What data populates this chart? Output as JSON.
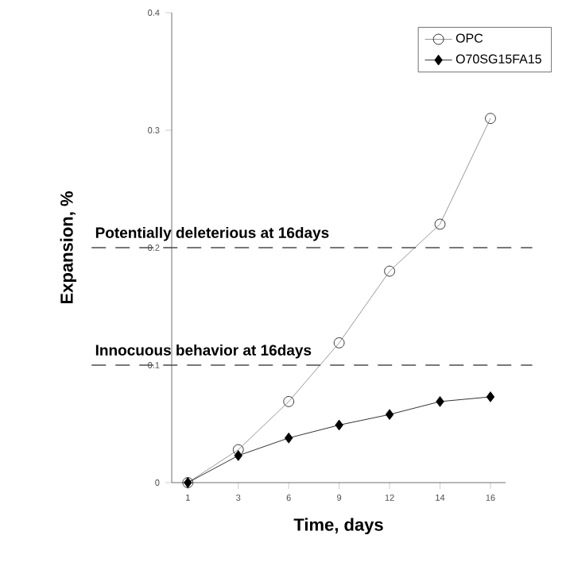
{
  "chart_data": {
    "type": "line",
    "xlabel": "Time, days",
    "ylabel": "Expansion, %",
    "categories": [
      "1",
      "3",
      "6",
      "9",
      "12",
      "14",
      "16"
    ],
    "series": [
      {
        "name": "OPC",
        "color": "#7f7f7f",
        "marker": "circle",
        "values": [
          0,
          0.028,
          0.069,
          0.119,
          0.18,
          0.22,
          0.31
        ]
      },
      {
        "name": "O70SG15FA15",
        "color": "#000000",
        "marker": "diamond",
        "values": [
          0,
          0.023,
          0.038,
          0.049,
          0.058,
          0.069,
          0.073
        ]
      }
    ],
    "ylim": [
      0,
      0.4
    ],
    "yticks": [
      0,
      0.1,
      0.2,
      0.3,
      0.4
    ],
    "ref_lines": [
      {
        "axis": "y",
        "value": 0.2,
        "label": "Potentially deleterious at 16days",
        "line_style": "dashed"
      },
      {
        "axis": "y",
        "value": 0.1,
        "label": "Innocuous behavior at 16days",
        "line_style": "dashed"
      }
    ],
    "legend": "top right",
    "grid": false,
    "line_style": "solid"
  }
}
